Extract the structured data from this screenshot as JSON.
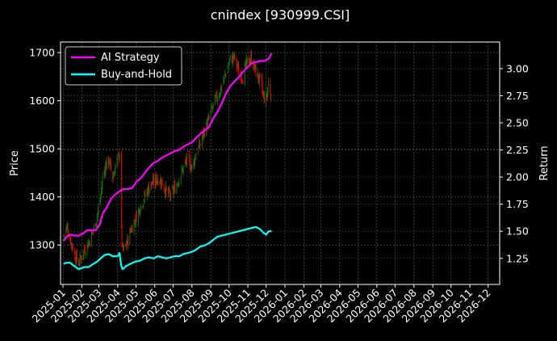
{
  "chart_data": {
    "type": "line",
    "title": "cnindex [930999.CSI]",
    "xlabel": "",
    "ylabel": "Price",
    "y2label": "Return",
    "xlim": [
      "2024-12-28",
      "2026-12-20"
    ],
    "ylim": [
      1218,
      1722
    ],
    "y2lim": [
      1.01,
      3.245
    ],
    "grid": true,
    "legend_placement": "top-left",
    "x_ticks": [
      "2025-01",
      "2025-02",
      "2025-03",
      "2025-04",
      "2025-05",
      "2025-06",
      "2025-07",
      "2025-08",
      "2025-09",
      "2025-10",
      "2025-11",
      "2025-12",
      "2026-01",
      "2026-02",
      "2026-03",
      "2026-04",
      "2026-05",
      "2026-06",
      "2026-07",
      "2026-08",
      "2026-09",
      "2026-10",
      "2026-11",
      "2026-12"
    ],
    "y_ticks": [
      1300,
      1400,
      1500,
      1600,
      1700
    ],
    "y2_ticks": [
      "1.25",
      "1.50",
      "1.75",
      "2.00",
      "2.25",
      "2.50",
      "2.75",
      "3.00"
    ],
    "candlestick": {
      "up_color": "#008000",
      "down_color": "#ff0000",
      "anchors": [
        [
          "2025-01-02",
          1320
        ],
        [
          "2025-01-08",
          1338
        ],
        [
          "2025-01-13",
          1312
        ],
        [
          "2025-01-17",
          1296
        ],
        [
          "2025-01-22",
          1275
        ],
        [
          "2025-01-27",
          1264
        ],
        [
          "2025-02-05",
          1290
        ],
        [
          "2025-02-12",
          1305
        ],
        [
          "2025-02-20",
          1330
        ],
        [
          "2025-02-26",
          1360
        ],
        [
          "2025-03-04",
          1400
        ],
        [
          "2025-03-07",
          1440
        ],
        [
          "2025-03-12",
          1465
        ],
        [
          "2025-03-18",
          1475
        ],
        [
          "2025-03-24",
          1440
        ],
        [
          "2025-03-28",
          1465
        ],
        [
          "2025-04-02",
          1480
        ],
        [
          "2025-04-04",
          1495
        ],
        [
          "2025-04-07",
          1330
        ],
        [
          "2025-04-09",
          1285
        ],
        [
          "2025-04-15",
          1300
        ],
        [
          "2025-04-22",
          1330
        ],
        [
          "2025-04-30",
          1355
        ],
        [
          "2025-05-08",
          1380
        ],
        [
          "2025-05-15",
          1400
        ],
        [
          "2025-05-22",
          1420
        ],
        [
          "2025-05-30",
          1430
        ],
        [
          "2025-06-06",
          1440
        ],
        [
          "2025-06-13",
          1430
        ],
        [
          "2025-06-20",
          1410
        ],
        [
          "2025-06-27",
          1400
        ],
        [
          "2025-07-04",
          1420
        ],
        [
          "2025-07-11",
          1440
        ],
        [
          "2025-07-18",
          1460
        ],
        [
          "2025-07-25",
          1480
        ],
        [
          "2025-08-01",
          1460
        ],
        [
          "2025-08-08",
          1490
        ],
        [
          "2025-08-15",
          1510
        ],
        [
          "2025-08-22",
          1540
        ],
        [
          "2025-08-29",
          1560
        ],
        [
          "2025-09-05",
          1590
        ],
        [
          "2025-09-12",
          1610
        ],
        [
          "2025-09-19",
          1630
        ],
        [
          "2025-09-26",
          1660
        ],
        [
          "2025-10-03",
          1685
        ],
        [
          "2025-10-10",
          1690
        ],
        [
          "2025-10-17",
          1660
        ],
        [
          "2025-10-24",
          1650
        ],
        [
          "2025-10-31",
          1680
        ],
        [
          "2025-11-07",
          1690
        ],
        [
          "2025-11-14",
          1660
        ],
        [
          "2025-11-21",
          1640
        ],
        [
          "2025-11-26",
          1610
        ],
        [
          "2025-12-01",
          1600
        ],
        [
          "2025-12-05",
          1640
        ],
        [
          "2025-12-09",
          1615
        ]
      ]
    },
    "series": [
      {
        "name": "AI Strategy",
        "color": "#ff00ff",
        "axis": "right",
        "points": [
          [
            "2025-01-02",
            1.41
          ],
          [
            "2025-01-07",
            1.45
          ],
          [
            "2025-01-13",
            1.47
          ],
          [
            "2025-01-20",
            1.46
          ],
          [
            "2025-01-27",
            1.46
          ],
          [
            "2025-02-03",
            1.48
          ],
          [
            "2025-02-10",
            1.51
          ],
          [
            "2025-02-17",
            1.51
          ],
          [
            "2025-02-24",
            1.51
          ],
          [
            "2025-03-03",
            1.57
          ],
          [
            "2025-03-07",
            1.66
          ],
          [
            "2025-03-14",
            1.72
          ],
          [
            "2025-03-21",
            1.8
          ],
          [
            "2025-03-28",
            1.84
          ],
          [
            "2025-04-04",
            1.87
          ],
          [
            "2025-04-11",
            1.89
          ],
          [
            "2025-04-18",
            1.89
          ],
          [
            "2025-04-25",
            1.9
          ],
          [
            "2025-05-02",
            1.96
          ],
          [
            "2025-05-09",
            1.99
          ],
          [
            "2025-05-16",
            2.04
          ],
          [
            "2025-05-23",
            2.09
          ],
          [
            "2025-05-30",
            2.13
          ],
          [
            "2025-06-06",
            2.15
          ],
          [
            "2025-06-13",
            2.18
          ],
          [
            "2025-06-20",
            2.2
          ],
          [
            "2025-06-27",
            2.22
          ],
          [
            "2025-07-04",
            2.24
          ],
          [
            "2025-07-11",
            2.25
          ],
          [
            "2025-07-18",
            2.28
          ],
          [
            "2025-07-25",
            2.3
          ],
          [
            "2025-08-01",
            2.32
          ],
          [
            "2025-08-08",
            2.36
          ],
          [
            "2025-08-15",
            2.4
          ],
          [
            "2025-08-22",
            2.43
          ],
          [
            "2025-08-29",
            2.46
          ],
          [
            "2025-09-05",
            2.54
          ],
          [
            "2025-09-12",
            2.6
          ],
          [
            "2025-09-19",
            2.68
          ],
          [
            "2025-09-26",
            2.77
          ],
          [
            "2025-10-03",
            2.84
          ],
          [
            "2025-10-10",
            2.88
          ],
          [
            "2025-10-17",
            2.92
          ],
          [
            "2025-10-24",
            2.97
          ],
          [
            "2025-10-31",
            3.01
          ],
          [
            "2025-11-07",
            3.05
          ],
          [
            "2025-11-14",
            3.06
          ],
          [
            "2025-11-21",
            3.07
          ],
          [
            "2025-11-28",
            3.07
          ],
          [
            "2025-12-05",
            3.09
          ],
          [
            "2025-12-10",
            3.14
          ]
        ]
      },
      {
        "name": "Buy-and-Hold",
        "color": "#00ffff",
        "axis": "right",
        "points": [
          [
            "2025-01-02",
            1.2
          ],
          [
            "2025-01-07",
            1.21
          ],
          [
            "2025-01-13",
            1.21
          ],
          [
            "2025-01-17",
            1.19
          ],
          [
            "2025-01-22",
            1.17
          ],
          [
            "2025-01-27",
            1.15
          ],
          [
            "2025-02-05",
            1.17
          ],
          [
            "2025-02-12",
            1.17
          ],
          [
            "2025-02-20",
            1.2
          ],
          [
            "2025-02-26",
            1.22
          ],
          [
            "2025-03-04",
            1.25
          ],
          [
            "2025-03-10",
            1.28
          ],
          [
            "2025-03-17",
            1.29
          ],
          [
            "2025-03-24",
            1.27
          ],
          [
            "2025-04-01",
            1.27
          ],
          [
            "2025-04-04",
            1.3
          ],
          [
            "2025-04-07",
            1.18
          ],
          [
            "2025-04-09",
            1.15
          ],
          [
            "2025-04-15",
            1.18
          ],
          [
            "2025-04-22",
            1.2
          ],
          [
            "2025-04-30",
            1.22
          ],
          [
            "2025-05-08",
            1.23
          ],
          [
            "2025-05-15",
            1.25
          ],
          [
            "2025-05-22",
            1.26
          ],
          [
            "2025-05-30",
            1.25
          ],
          [
            "2025-06-06",
            1.27
          ],
          [
            "2025-06-13",
            1.26
          ],
          [
            "2025-06-20",
            1.25
          ],
          [
            "2025-06-27",
            1.26
          ],
          [
            "2025-07-04",
            1.27
          ],
          [
            "2025-07-11",
            1.27
          ],
          [
            "2025-07-18",
            1.29
          ],
          [
            "2025-07-25",
            1.3
          ],
          [
            "2025-08-01",
            1.31
          ],
          [
            "2025-08-08",
            1.33
          ],
          [
            "2025-08-15",
            1.36
          ],
          [
            "2025-08-22",
            1.37
          ],
          [
            "2025-08-29",
            1.39
          ],
          [
            "2025-09-05",
            1.42
          ],
          [
            "2025-09-12",
            1.45
          ],
          [
            "2025-09-19",
            1.46
          ],
          [
            "2025-09-26",
            1.47
          ],
          [
            "2025-10-03",
            1.48
          ],
          [
            "2025-10-10",
            1.49
          ],
          [
            "2025-10-17",
            1.5
          ],
          [
            "2025-10-24",
            1.51
          ],
          [
            "2025-10-31",
            1.52
          ],
          [
            "2025-11-07",
            1.53
          ],
          [
            "2025-11-14",
            1.54
          ],
          [
            "2025-11-21",
            1.52
          ],
          [
            "2025-11-26",
            1.49
          ],
          [
            "2025-12-01",
            1.47
          ],
          [
            "2025-12-05",
            1.5
          ],
          [
            "2025-12-10",
            1.5
          ]
        ]
      }
    ]
  }
}
